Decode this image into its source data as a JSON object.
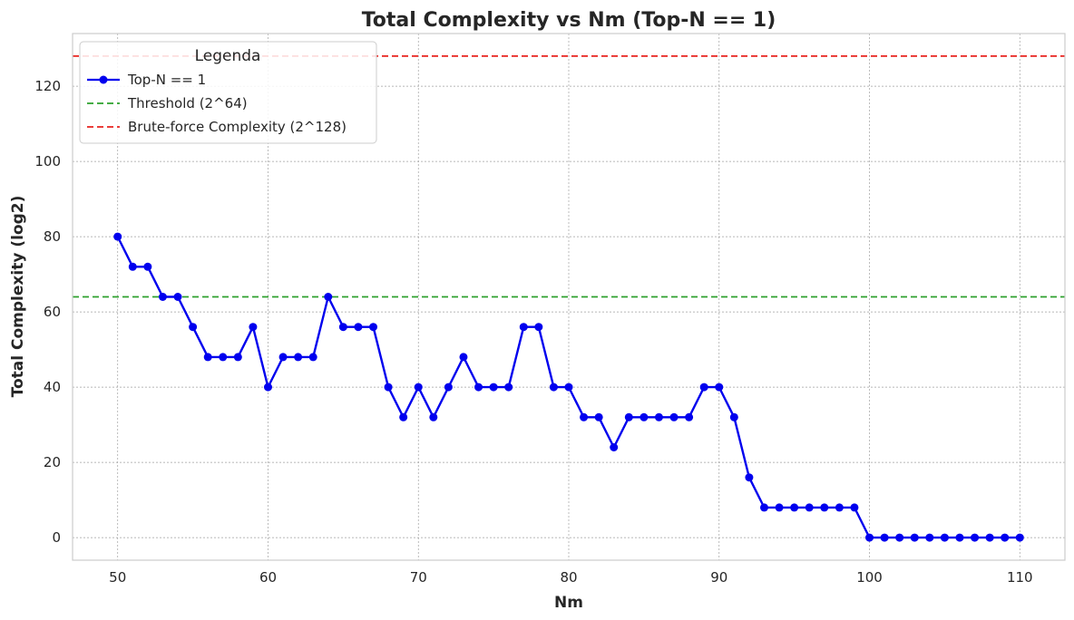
{
  "chart_data": {
    "type": "line",
    "title": "Total Complexity vs Nm (Top-N == 1)",
    "xlabel": "Nm",
    "ylabel": "Total Complexity (log2)",
    "xlim": [
      47,
      113
    ],
    "ylim": [
      -6,
      134
    ],
    "xticks": [
      50,
      60,
      70,
      80,
      90,
      100,
      110
    ],
    "yticks": [
      0,
      20,
      40,
      60,
      80,
      100,
      120
    ],
    "grid": true,
    "legend": {
      "title": "Legenda",
      "placement": "top-left"
    },
    "series": [
      {
        "name": "Top-N == 1",
        "color": "#0000ee",
        "marker": "circle",
        "x": [
          50,
          51,
          52,
          53,
          54,
          55,
          56,
          57,
          58,
          59,
          60,
          61,
          62,
          63,
          64,
          65,
          66,
          67,
          68,
          69,
          70,
          71,
          72,
          73,
          74,
          75,
          76,
          77,
          78,
          79,
          80,
          81,
          82,
          83,
          84,
          85,
          86,
          87,
          88,
          89,
          90,
          91,
          92,
          93,
          94,
          95,
          96,
          97,
          98,
          99,
          100,
          101,
          102,
          103,
          104,
          105,
          106,
          107,
          108,
          109,
          110
        ],
        "y": [
          80,
          72,
          72,
          64,
          64,
          56,
          48,
          48,
          48,
          56,
          40,
          48,
          48,
          48,
          64,
          56,
          56,
          56,
          40,
          32,
          40,
          32,
          40,
          48,
          40,
          40,
          40,
          56,
          56,
          40,
          40,
          32,
          32,
          24,
          32,
          32,
          32,
          32,
          32,
          40,
          40,
          32,
          16,
          8,
          8,
          8,
          8,
          8,
          8,
          8,
          0,
          0,
          0,
          0,
          0,
          0,
          0,
          0,
          0,
          0,
          0
        ]
      }
    ],
    "reference_lines": [
      {
        "name": "Threshold (2^64)",
        "y": 64,
        "color": "#2ca02c",
        "style": "dashed"
      },
      {
        "name": "Brute-force Complexity (2^128)",
        "y": 128,
        "color": "#e8231f",
        "style": "dashed"
      }
    ]
  }
}
